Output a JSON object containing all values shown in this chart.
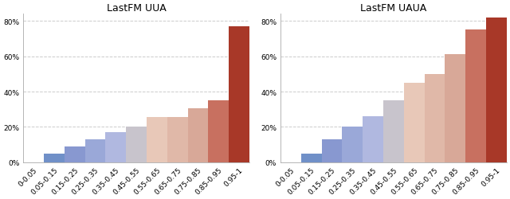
{
  "uua": {
    "title": "LastFM UUA",
    "categories": [
      "0-0.05",
      "0.05-0.15",
      "0.15-0.25",
      "0.25-0.35",
      "0.35-0.45",
      "0.45-0.55",
      "0.55-0.65",
      "0.65-0.75",
      "0.75-0.85",
      "0.85-0.95",
      "0.95-1"
    ],
    "values": [
      0.0,
      0.05,
      0.09,
      0.13,
      0.17,
      0.2,
      0.255,
      0.255,
      0.305,
      0.35,
      0.77
    ],
    "colors": [
      "#b8c8e0",
      "#7090c8",
      "#8898d0",
      "#9aa8d8",
      "#b0b8e0",
      "#c8c4cc",
      "#e8c8b8",
      "#e0b8a8",
      "#d8a898",
      "#c87060",
      "#a83828"
    ]
  },
  "uaua": {
    "title": "LastFM UAUA",
    "categories": [
      "0-0.05",
      "0.05-0.15",
      "0.15-0.25",
      "0.25-0.35",
      "0.35-0.45",
      "0.45-0.55",
      "0.55-0.65",
      "0.65-0.75",
      "0.75-0.85",
      "0.85-0.95",
      "0.95-1"
    ],
    "values": [
      0.0,
      0.05,
      0.13,
      0.2,
      0.26,
      0.35,
      0.45,
      0.5,
      0.61,
      0.75,
      0.82
    ],
    "colors": [
      "#b8c8e0",
      "#7090c8",
      "#8898d0",
      "#9aa8d8",
      "#b0b8e0",
      "#c8c4cc",
      "#e8c8b8",
      "#e0b8a8",
      "#d8a898",
      "#c87060",
      "#a83828"
    ]
  },
  "ylim": [
    0,
    0.84
  ],
  "yticks": [
    0.0,
    0.2,
    0.4,
    0.6,
    0.8
  ],
  "ytick_labels": [
    "0%",
    "20%",
    "40%",
    "60%",
    "80%"
  ],
  "background_color": "#ffffff",
  "figure_background": "#ffffff",
  "grid_color": "#cccccc"
}
